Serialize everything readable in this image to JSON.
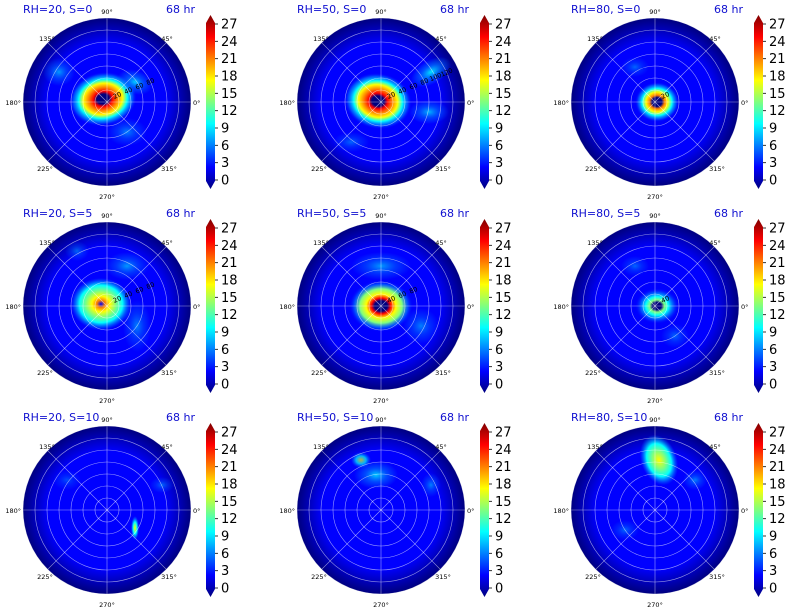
{
  "chart_data": [
    {
      "type": "heatmap",
      "title_left": "RH=20, S=0",
      "title_right": "68 hr",
      "peak_band": "eyewall ring",
      "colorbar_ticks": [
        "0",
        "3",
        "6",
        "9",
        "12",
        "15",
        "18",
        "21",
        "24",
        "27"
      ],
      "angle_labels": [
        "90°",
        "45°",
        "0°",
        "315°",
        "270°",
        "225°",
        "180°",
        "135°"
      ],
      "radial_labels": [
        "20",
        "40",
        "60",
        "80"
      ]
    },
    {
      "type": "heatmap",
      "title_left": "RH=50, S=0",
      "title_right": "68 hr",
      "peak_band": "eyewall ring",
      "colorbar_ticks": [
        "0",
        "3",
        "6",
        "9",
        "12",
        "15",
        "18",
        "21",
        "24",
        "27"
      ],
      "angle_labels": [
        "90°",
        "45°",
        "0°",
        "315°",
        "270°",
        "225°",
        "180°",
        "135°"
      ],
      "radial_labels": [
        "20",
        "40",
        "60",
        "80",
        "100",
        "120"
      ]
    },
    {
      "type": "heatmap",
      "title_left": "RH=80, S=0",
      "title_right": "68 hr",
      "peak_band": "compact eyewall",
      "colorbar_ticks": [
        "0",
        "3",
        "6",
        "9",
        "12",
        "15",
        "18",
        "21",
        "24",
        "27"
      ],
      "angle_labels": [
        "90°",
        "45°",
        "0°",
        "315°",
        "270°",
        "225°",
        "180°",
        "135°"
      ],
      "radial_labels": [
        "20"
      ]
    },
    {
      "type": "heatmap",
      "title_left": "RH=20, S=5",
      "title_right": "68 hr",
      "peak_band": "asymmetric core",
      "colorbar_ticks": [
        "0",
        "3",
        "6",
        "9",
        "12",
        "15",
        "18",
        "21",
        "24",
        "27"
      ],
      "angle_labels": [
        "90°",
        "45°",
        "0°",
        "315°",
        "270°",
        "225°",
        "180°",
        "135°"
      ],
      "radial_labels": [
        "20",
        "40",
        "60",
        "80"
      ]
    },
    {
      "type": "heatmap",
      "title_left": "RH=50, S=5",
      "title_right": "68 hr",
      "peak_band": "asymmetric eyewall",
      "colorbar_ticks": [
        "0",
        "3",
        "6",
        "9",
        "12",
        "15",
        "18",
        "21",
        "24",
        "27"
      ],
      "angle_labels": [
        "90°",
        "45°",
        "0°",
        "315°",
        "270°",
        "225°",
        "180°",
        "135°"
      ],
      "radial_labels": [
        "40",
        "60",
        "80"
      ]
    },
    {
      "type": "heatmap",
      "title_left": "RH=80, S=5",
      "title_right": "68 hr",
      "peak_band": "weak ring",
      "colorbar_ticks": [
        "0",
        "3",
        "6",
        "9",
        "12",
        "15",
        "18",
        "21",
        "24",
        "27"
      ],
      "angle_labels": [
        "90°",
        "45°",
        "0°",
        "315°",
        "270°",
        "225°",
        "180°",
        "135°"
      ],
      "radial_labels": [
        "40"
      ]
    },
    {
      "type": "heatmap",
      "title_left": "RH=20, S=10",
      "title_right": "68 hr",
      "peak_band": "weak",
      "colorbar_ticks": [
        "0",
        "3",
        "6",
        "9",
        "12",
        "15",
        "18",
        "21",
        "24",
        "27"
      ],
      "angle_labels": [
        "90°",
        "45°",
        "0°",
        "315°",
        "270°",
        "225°",
        "180°",
        "135°"
      ],
      "radial_labels": []
    },
    {
      "type": "heatmap",
      "title_left": "RH=50, S=10",
      "title_right": "68 hr",
      "peak_band": "weak",
      "colorbar_ticks": [
        "0",
        "3",
        "6",
        "9",
        "12",
        "15",
        "18",
        "21",
        "24",
        "27"
      ],
      "angle_labels": [
        "90°",
        "45°",
        "0°",
        "315°",
        "270°",
        "225°",
        "180°",
        "135°"
      ],
      "radial_labels": []
    },
    {
      "type": "heatmap",
      "title_left": "RH=80, S=10",
      "title_right": "68 hr",
      "peak_band": "northern convection",
      "colorbar_ticks": [
        "0",
        "3",
        "6",
        "9",
        "12",
        "15",
        "18",
        "21",
        "24",
        "27"
      ],
      "angle_labels": [
        "90°",
        "45°",
        "0°",
        "315°",
        "270°",
        "225°",
        "180°",
        "135°"
      ],
      "radial_labels": []
    }
  ],
  "colors": {
    "background": "#ffffff",
    "title_color": "#1010d0",
    "jet": [
      "#00007f",
      "#0000ff",
      "#007fff",
      "#00ffff",
      "#7fff7f",
      "#ffff00",
      "#ff7f00",
      "#ff0000",
      "#7f0000"
    ]
  }
}
